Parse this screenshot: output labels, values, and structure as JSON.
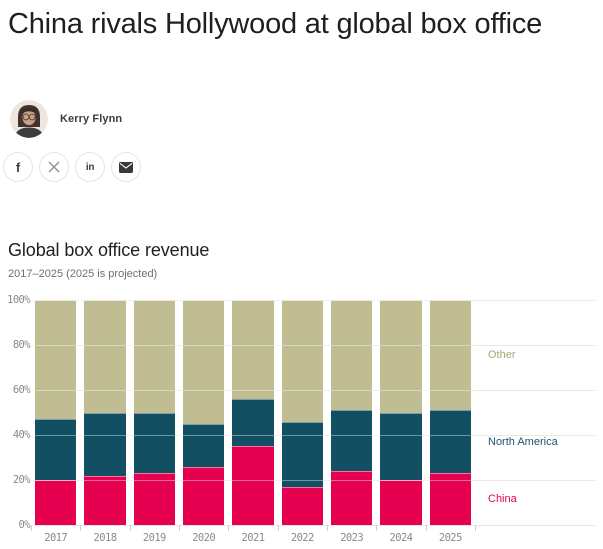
{
  "article": {
    "headline": "China rivals Hollywood at global box office",
    "author": "Kerry Flynn"
  },
  "share": {
    "buttons": [
      {
        "icon": "facebook-icon",
        "glyph": "f"
      },
      {
        "icon": "x-twitter-icon",
        "glyph": "X"
      },
      {
        "icon": "linkedin-icon",
        "glyph": "in"
      },
      {
        "icon": "email-icon",
        "glyph": "envelope"
      }
    ]
  },
  "chart_data": {
    "type": "bar",
    "stacked": true,
    "title": "Global box office revenue",
    "subtitle": "2017–2025 (2025 is projected)",
    "categories": [
      "2017",
      "2018",
      "2019",
      "2020",
      "2021",
      "2022",
      "2023",
      "2024",
      "2025"
    ],
    "series": [
      {
        "name": "China",
        "color": "#e60050",
        "label_color": "#e6005b",
        "values": [
          20,
          22,
          23,
          26,
          35,
          17,
          24,
          20,
          23
        ]
      },
      {
        "name": "North America",
        "color": "#134f62",
        "label_color": "#19566b",
        "values": [
          27,
          28,
          27,
          19,
          21,
          29,
          27,
          30,
          28
        ]
      },
      {
        "name": "Other",
        "color": "#c0bd93",
        "label_color": "#aaa67c",
        "values": [
          53,
          50,
          50,
          55,
          44,
          54,
          49,
          50,
          49
        ]
      }
    ],
    "ylabel_ticks": [
      "0%",
      "20%",
      "40%",
      "60%",
      "80%",
      "100%"
    ],
    "ytick_values": [
      0,
      20,
      40,
      60,
      80,
      100
    ],
    "ylim": [
      0,
      100
    ],
    "unit": "%",
    "grid": true,
    "legend_position": "right"
  }
}
